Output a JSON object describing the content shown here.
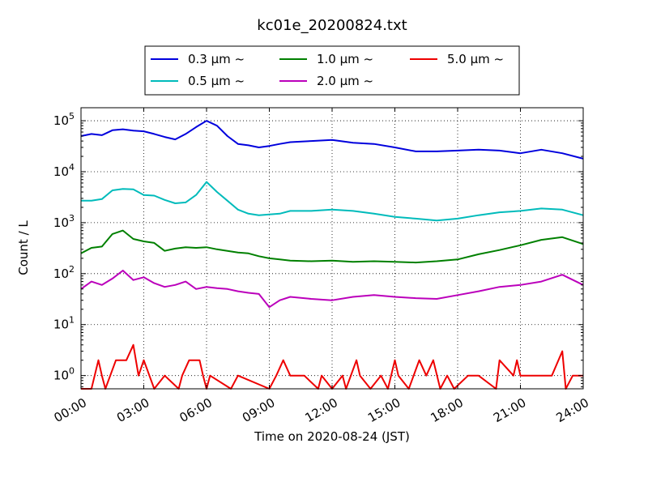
{
  "chart_data": {
    "type": "line",
    "title": "kc01e_20200824.txt",
    "xlabel": "Time on 2020-08-24 (JST)",
    "ylabel": "Count / L",
    "yscale": "log",
    "ylim": [
      0.55,
      180000
    ],
    "xlim": [
      "00:00",
      "24:00"
    ],
    "x_ticks": [
      "00:00",
      "03:00",
      "06:00",
      "09:00",
      "12:00",
      "15:00",
      "18:00",
      "21:00",
      "24:00"
    ],
    "y_ticks": [
      {
        "value": 1,
        "base": "10",
        "exp": "0"
      },
      {
        "value": 10,
        "base": "10",
        "exp": "1"
      },
      {
        "value": 100,
        "base": "10",
        "exp": "2"
      },
      {
        "value": 1000,
        "base": "10",
        "exp": "3"
      },
      {
        "value": 10000,
        "base": "10",
        "exp": "4"
      },
      {
        "value": 100000,
        "base": "10",
        "exp": "5"
      }
    ],
    "grid": true,
    "legend_position": "top",
    "series": [
      {
        "name": "0.3 μm  ~",
        "color": "#0000dd",
        "x": [
          "00:00",
          "00:30",
          "01:00",
          "01:30",
          "02:00",
          "02:30",
          "03:00",
          "03:30",
          "04:00",
          "04:30",
          "05:00",
          "05:30",
          "06:00",
          "06:30",
          "07:00",
          "07:30",
          "08:00",
          "08:30",
          "09:00",
          "09:30",
          "10:00",
          "11:00",
          "12:00",
          "13:00",
          "14:00",
          "15:00",
          "16:00",
          "17:00",
          "18:00",
          "19:00",
          "20:00",
          "21:00",
          "22:00",
          "23:00",
          "24:00"
        ],
        "y": [
          50000,
          55000,
          52000,
          65000,
          68000,
          64000,
          62000,
          55000,
          48000,
          43000,
          55000,
          75000,
          100000,
          80000,
          50000,
          35000,
          33000,
          30000,
          32000,
          35000,
          38000,
          40000,
          42000,
          37000,
          35000,
          30000,
          25000,
          25000,
          26000,
          27000,
          26000,
          23000,
          27000,
          23000,
          18000
        ]
      },
      {
        "name": "0.5 μm  ~",
        "color": "#00bbbb",
        "x": [
          "00:00",
          "00:30",
          "01:00",
          "01:30",
          "02:00",
          "02:30",
          "03:00",
          "03:30",
          "04:00",
          "04:30",
          "05:00",
          "05:30",
          "06:00",
          "06:30",
          "07:00",
          "07:30",
          "08:00",
          "08:30",
          "09:00",
          "09:30",
          "10:00",
          "11:00",
          "12:00",
          "13:00",
          "14:00",
          "15:00",
          "16:00",
          "17:00",
          "18:00",
          "19:00",
          "20:00",
          "21:00",
          "22:00",
          "23:00",
          "24:00"
        ],
        "y": [
          2700,
          2700,
          2900,
          4300,
          4600,
          4500,
          3500,
          3400,
          2800,
          2400,
          2500,
          3500,
          6300,
          4000,
          2700,
          1800,
          1500,
          1400,
          1450,
          1500,
          1700,
          1700,
          1800,
          1700,
          1500,
          1300,
          1200,
          1100,
          1200,
          1400,
          1600,
          1700,
          1900,
          1800,
          1400
        ]
      },
      {
        "name": "1.0 μm  ~",
        "color": "#008000",
        "x": [
          "00:00",
          "00:30",
          "01:00",
          "01:30",
          "02:00",
          "02:30",
          "03:00",
          "03:30",
          "04:00",
          "04:30",
          "05:00",
          "05:30",
          "06:00",
          "06:30",
          "07:00",
          "07:30",
          "08:00",
          "08:30",
          "09:00",
          "09:30",
          "10:00",
          "11:00",
          "12:00",
          "13:00",
          "14:00",
          "15:00",
          "16:00",
          "17:00",
          "18:00",
          "19:00",
          "20:00",
          "21:00",
          "22:00",
          "23:00",
          "24:00"
        ],
        "y": [
          250,
          320,
          340,
          600,
          700,
          480,
          430,
          400,
          280,
          310,
          330,
          320,
          330,
          300,
          280,
          260,
          250,
          220,
          200,
          190,
          180,
          175,
          180,
          170,
          175,
          170,
          165,
          175,
          190,
          240,
          290,
          360,
          460,
          520,
          380
        ]
      },
      {
        "name": "2.0 μm  ~",
        "color": "#bb00bb",
        "x": [
          "00:00",
          "00:30",
          "01:00",
          "01:30",
          "02:00",
          "02:30",
          "03:00",
          "03:30",
          "04:00",
          "04:30",
          "05:00",
          "05:30",
          "06:00",
          "06:30",
          "07:00",
          "07:30",
          "08:00",
          "08:30",
          "09:00",
          "09:30",
          "10:00",
          "11:00",
          "12:00",
          "13:00",
          "14:00",
          "15:00",
          "16:00",
          "17:00",
          "18:00",
          "19:00",
          "20:00",
          "21:00",
          "22:00",
          "23:00",
          "24:00"
        ],
        "y": [
          50,
          70,
          60,
          80,
          115,
          75,
          85,
          65,
          55,
          60,
          70,
          50,
          55,
          52,
          50,
          45,
          42,
          40,
          22,
          30,
          35,
          32,
          30,
          35,
          38,
          35,
          33,
          32,
          38,
          45,
          55,
          60,
          70,
          95,
          60
        ]
      },
      {
        "name": "5.0 μm  ~",
        "color": "#ee0000",
        "x": [
          "00:00",
          "00:30",
          "00:50",
          "01:00",
          "01:10",
          "01:40",
          "02:10",
          "02:30",
          "02:45",
          "03:00",
          "03:30",
          "04:00",
          "04:40",
          "04:50",
          "05:10",
          "05:40",
          "05:50",
          "06:00",
          "06:10",
          "07:10",
          "07:30",
          "09:00",
          "09:20",
          "09:40",
          "10:00",
          "10:40",
          "11:20",
          "11:30",
          "12:00",
          "12:30",
          "12:40",
          "13:10",
          "13:20",
          "13:50",
          "14:20",
          "14:40",
          "15:00",
          "15:10",
          "15:40",
          "16:10",
          "16:30",
          "16:50",
          "17:10",
          "17:30",
          "17:50",
          "18:30",
          "19:00",
          "19:50",
          "20:00",
          "20:40",
          "20:50",
          "21:00",
          "21:10",
          "21:30",
          "22:00",
          "22:30",
          "23:00",
          "23:10",
          "23:30",
          "23:50",
          "24:00"
        ],
        "y": [
          0.55,
          0.55,
          2,
          1,
          0.55,
          2,
          2,
          4,
          1,
          2,
          0.55,
          1,
          0.55,
          1,
          2,
          2,
          1,
          0.55,
          1,
          0.55,
          1,
          0.55,
          1,
          2,
          1,
          1,
          0.55,
          1,
          0.55,
          1,
          0.55,
          2,
          1,
          0.55,
          1,
          0.55,
          2,
          1,
          0.55,
          2,
          1,
          2,
          0.55,
          1,
          0.55,
          1,
          1,
          0.55,
          2,
          1,
          2,
          1,
          1,
          1,
          1,
          1,
          3,
          0.55,
          1,
          1,
          1
        ]
      }
    ]
  }
}
